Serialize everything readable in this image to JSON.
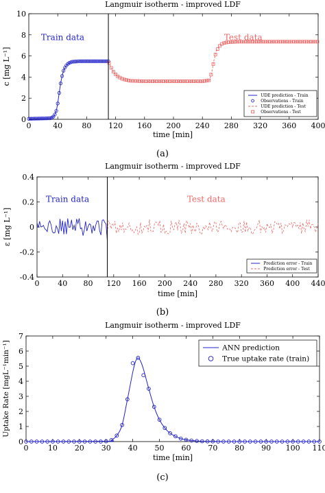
{
  "figure": {
    "panel_labels": [
      "(a)",
      "(b)",
      "(c)"
    ],
    "bottom_caption": ""
  },
  "chart_data": [
    {
      "type": "scatter",
      "panel": "(a)",
      "title": "Langmuir isotherm - improved LDF",
      "xlabel": "time [min]",
      "ylabel": "c  [mg L⁻¹]",
      "xlim": [
        0,
        400
      ],
      "ylim": [
        0,
        10
      ],
      "xticks": [
        0,
        40,
        80,
        120,
        160,
        200,
        240,
        280,
        320,
        360,
        400
      ],
      "yticks": [
        0,
        2,
        4,
        6,
        8,
        10
      ],
      "grid": false,
      "legend_position": "bottom-right",
      "split_x": 110,
      "annotations": [
        {
          "text": "Train data",
          "x": 17,
          "y": 7.5,
          "color": "#2222cc"
        },
        {
          "text": "Test data",
          "x": 270,
          "y": 7.5,
          "color": "#ee6666"
        }
      ],
      "legend": [
        {
          "label": "UDE prediction - Train",
          "style": "line",
          "color": "#2222cc"
        },
        {
          "label": "Observations - Train",
          "style": "circle",
          "color": "#2222cc"
        },
        {
          "label": "UDE prediction - Test",
          "style": "dashed",
          "color": "#ee6666"
        },
        {
          "label": "Observations - Test",
          "style": "square",
          "color": "#ee6666"
        }
      ],
      "train_profile": [
        [
          0,
          0.05
        ],
        [
          30,
          0.1
        ],
        [
          35,
          0.3
        ],
        [
          38,
          0.8
        ],
        [
          40,
          1.5
        ],
        [
          42,
          2.5
        ],
        [
          44,
          3.4
        ],
        [
          46,
          4.1
        ],
        [
          48,
          4.6
        ],
        [
          50,
          4.9
        ],
        [
          53,
          5.2
        ],
        [
          56,
          5.35
        ],
        [
          60,
          5.45
        ],
        [
          70,
          5.5
        ],
        [
          80,
          5.5
        ],
        [
          100,
          5.5
        ],
        [
          110,
          5.5
        ]
      ],
      "test_profile": [
        [
          110,
          5.5
        ],
        [
          113,
          5.0
        ],
        [
          117,
          4.5
        ],
        [
          122,
          4.1
        ],
        [
          130,
          3.8
        ],
        [
          140,
          3.65
        ],
        [
          160,
          3.6
        ],
        [
          200,
          3.6
        ],
        [
          240,
          3.6
        ],
        [
          250,
          3.7
        ],
        [
          253,
          4.5
        ],
        [
          256,
          5.6
        ],
        [
          259,
          6.4
        ],
        [
          263,
          6.9
        ],
        [
          268,
          7.2
        ],
        [
          275,
          7.3
        ],
        [
          290,
          7.35
        ],
        [
          400,
          7.35
        ]
      ],
      "train_step": 2,
      "test_step": 3
    },
    {
      "type": "line",
      "panel": "(b)",
      "title": "Langmuir isotherm - improved LDF",
      "xlabel": "time [min]",
      "ylabel": "ε  [mg L⁻¹]",
      "xlim": [
        0,
        440
      ],
      "ylim": [
        -0.4,
        0.4
      ],
      "xticks": [
        0,
        40,
        80,
        120,
        160,
        200,
        240,
        280,
        320,
        360,
        400,
        440
      ],
      "yticks": [
        -0.4,
        -0.2,
        0,
        0.2,
        0.4
      ],
      "grid": false,
      "legend_position": "bottom-right",
      "split_x": 110,
      "annotations": [
        {
          "text": "Train data",
          "x": 14,
          "y": 0.2,
          "color": "#2222cc"
        },
        {
          "text": "Test data",
          "x": 235,
          "y": 0.2,
          "color": "#ee6666"
        }
      ],
      "legend": [
        {
          "label": "Prediction error - Train",
          "style": "line",
          "color": "#2222cc"
        },
        {
          "label": "Prediction error - Test",
          "style": "dashed",
          "color": "#ee6666"
        }
      ],
      "train_amplitude": 0.07,
      "test_amplitude": 0.06,
      "train_step": 2,
      "test_step": 2
    },
    {
      "type": "line",
      "panel": "(c)",
      "title": "Langmuir isotherm - improved LDF",
      "xlabel": "time [min]",
      "ylabel": "Uptake Rate [mgL⁻¹min⁻¹]",
      "xlim": [
        0,
        110
      ],
      "ylim": [
        0,
        7
      ],
      "xticks": [
        0,
        10,
        20,
        30,
        40,
        50,
        60,
        70,
        80,
        90,
        100,
        110
      ],
      "yticks": [
        0,
        1,
        2,
        3,
        4,
        5,
        6,
        7
      ],
      "grid": false,
      "legend_position": "top-right",
      "legend": [
        {
          "label": "ANN prediction",
          "style": "line",
          "color": "#2222cc"
        },
        {
          "label": "True uptake rate (train)",
          "style": "circle",
          "color": "#2222cc"
        }
      ],
      "series": [
        {
          "style": "line",
          "color": "#2222cc",
          "x": [
            0,
            30,
            32,
            34,
            36,
            38,
            40,
            41,
            42,
            43,
            44,
            46,
            48,
            50,
            52,
            54,
            56,
            58,
            60,
            62,
            65,
            70,
            75,
            80,
            90,
            110
          ],
          "y": [
            0,
            0.02,
            0.1,
            0.4,
            1.1,
            2.8,
            4.6,
            5.3,
            5.55,
            5.3,
            4.8,
            3.5,
            2.3,
            1.45,
            0.9,
            0.55,
            0.35,
            0.2,
            0.12,
            0.07,
            0.03,
            0.01,
            0,
            0,
            0,
            0
          ]
        },
        {
          "style": "circle",
          "color": "#2222cc",
          "x": [
            0,
            2,
            4,
            6,
            8,
            10,
            12,
            14,
            16,
            18,
            20,
            22,
            24,
            26,
            28,
            30,
            32,
            34,
            36,
            38,
            40,
            42,
            44,
            46,
            48,
            50,
            52,
            54,
            56,
            58,
            60,
            62,
            64,
            66,
            68,
            70,
            72,
            74,
            76,
            78,
            80,
            82,
            84,
            86,
            88,
            90,
            92,
            94,
            96,
            98,
            100,
            102,
            104,
            106,
            108,
            110
          ],
          "y": [
            0,
            0,
            0,
            0,
            0,
            0,
            0,
            0,
            0,
            0,
            0,
            0,
            0,
            0,
            0,
            0.02,
            0.1,
            0.4,
            1.1,
            2.8,
            5.2,
            5.55,
            4.4,
            3.5,
            2.3,
            1.45,
            0.9,
            0.55,
            0.35,
            0.2,
            0.12,
            0.07,
            0.04,
            0.02,
            0.01,
            0.01,
            0,
            0,
            0,
            0,
            0,
            0,
            0,
            0,
            0,
            0,
            0,
            0,
            0,
            0,
            0,
            0,
            0,
            0,
            0,
            0
          ]
        }
      ]
    }
  ]
}
